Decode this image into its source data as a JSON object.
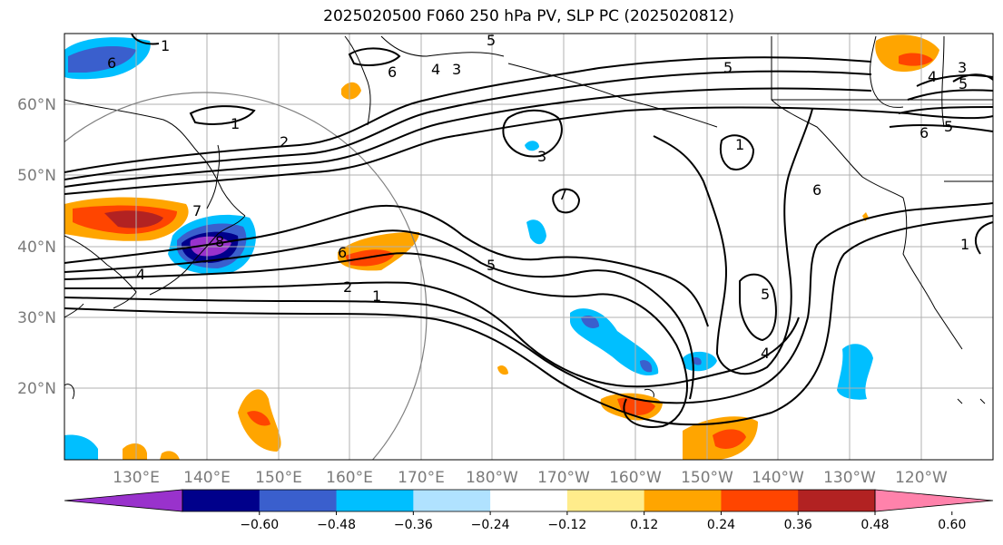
{
  "title": "2025020500 F060 250 hPa PV, SLP PC (2025020812)",
  "lat_labels": [
    "60°N",
    "50°N",
    "40°N",
    "30°N",
    "20°N"
  ],
  "lon_labels": [
    "130°E",
    "140°E",
    "150°E",
    "160°E",
    "170°E",
    "180°W",
    "170°W",
    "160°W",
    "150°W",
    "140°W",
    "130°W",
    "120°W"
  ],
  "colorbar": {
    "colors": [
      "#9932cc",
      "#00008b",
      "#3a5fcd",
      "#00bfff",
      "#b0e2ff",
      "#ffffff",
      "#ffec8b",
      "#ffa500",
      "#ff4500",
      "#b22222",
      "#ff82ab"
    ],
    "tick_labels": [
      "-0.60",
      "-0.48",
      "-0.36",
      "-0.24",
      "-0.12",
      "0.12",
      "0.24",
      "0.36",
      "0.48",
      "0.60"
    ]
  },
  "contour_labels": [
    "6",
    "1",
    "5",
    "6",
    "4",
    "3",
    "5",
    "3",
    "4",
    "1",
    "2",
    "5",
    "1",
    "3",
    "7",
    "8",
    "6",
    "4",
    "5",
    "2",
    "1",
    "7",
    "5",
    "1",
    "6",
    "4",
    "5",
    "6"
  ]
}
